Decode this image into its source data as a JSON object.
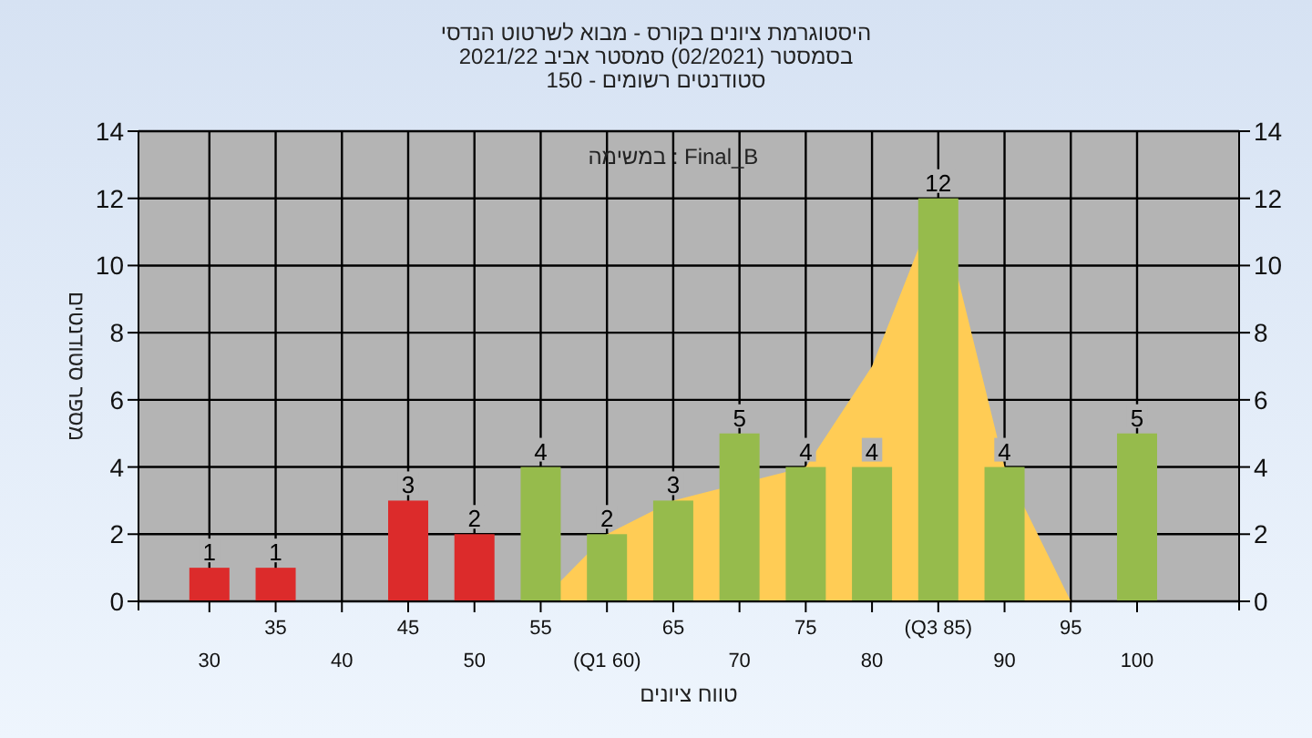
{
  "chart_data": {
    "type": "bar",
    "title": "היסטוגרמת ציונים בקורס - מבוא לשרטוט הנדסי",
    "subtitle": "בסמסטר (02/2021) סמסטר אביב 2021/22",
    "annotations": [
      "סטודנטים רשומים - 150",
      "Final_B : במשימה"
    ],
    "xlabel": "טווח ציונים",
    "ylabel": "מספר סטודנטים",
    "categories": [
      "30",
      "35",
      "40",
      "45",
      "50",
      "55",
      "(Q1 60)",
      "65",
      "70",
      "75",
      "80",
      "(Q3 85)",
      "90",
      "95",
      "100"
    ],
    "series": [
      {
        "type": "area",
        "color": "#ffcc55",
        "values": [
          null,
          null,
          null,
          null,
          null,
          0,
          2,
          3,
          null,
          4,
          7,
          12,
          4,
          0,
          null
        ]
      },
      {
        "colors": [
          "#dc2b2b",
          "#dc2b2b",
          null,
          "#dc2b2b",
          "#dc2b2b",
          "#96bb4c",
          "#96bb4c",
          "#96bb4c",
          "#96bb4c",
          "#96bb4c",
          "#96bb4c",
          "#96bb4c",
          "#96bb4c",
          null,
          "#96bb4c"
        ],
        "values": [
          1,
          1,
          null,
          3,
          2,
          4,
          2,
          3,
          5,
          4,
          4,
          12,
          4,
          null,
          5
        ],
        "value_labels": [
          "1",
          "1",
          null,
          "3",
          "2",
          "4",
          "2",
          "3",
          "5",
          "4",
          "4",
          "12",
          "4",
          null,
          "5"
        ]
      }
    ],
    "ylim": [
      0,
      14
    ],
    "yticks": [
      0,
      2,
      4,
      6,
      8,
      10,
      12,
      14
    ],
    "y2lim": [
      0,
      14
    ],
    "y2ticks": [
      0,
      2,
      4,
      6,
      8,
      10,
      12,
      14
    ],
    "grid": true
  }
}
